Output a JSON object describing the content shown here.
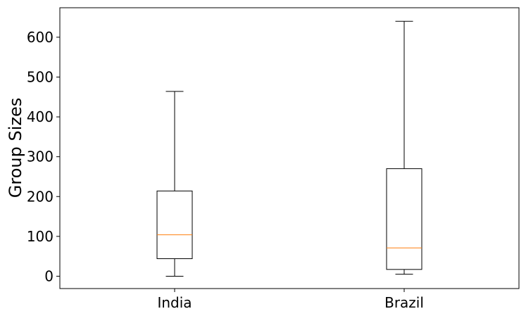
{
  "chart_data": {
    "type": "boxplot",
    "title": "",
    "xlabel": "",
    "ylabel": "Group Sizes",
    "ylim": [
      -31,
      674
    ],
    "y_ticks": [
      0,
      100,
      200,
      300,
      400,
      500,
      600
    ],
    "y_tick_labels": [
      "0",
      "100",
      "200",
      "300",
      "400",
      "500",
      "600"
    ],
    "categories": [
      "India",
      "Brazil"
    ],
    "boxes": [
      {
        "category": "India",
        "whisker_low": 0,
        "q1": 44,
        "median": 104,
        "q3": 214,
        "whisker_high": 464
      },
      {
        "category": "Brazil",
        "whisker_low": 5,
        "q1": 17,
        "median": 71,
        "q3": 270,
        "whisker_high": 640
      }
    ],
    "grid": false,
    "colors": {
      "box": "#000000",
      "median": "#ff7f0e",
      "axes": "#000000"
    }
  }
}
